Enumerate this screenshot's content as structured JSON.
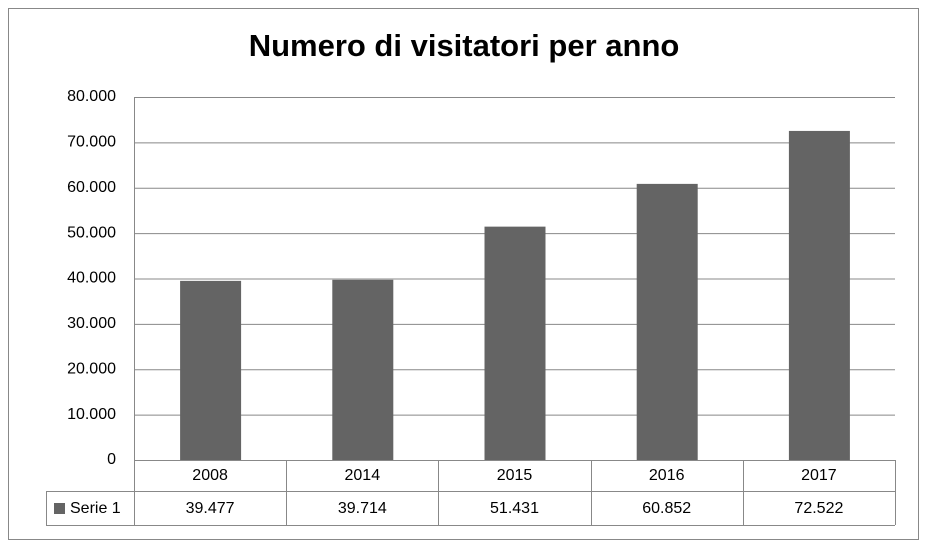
{
  "chart_data": {
    "type": "bar",
    "title": "Numero di visitatori per anno",
    "categories": [
      "2008",
      "2014",
      "2015",
      "2016",
      "2017"
    ],
    "series": [
      {
        "name": "Serie 1",
        "color": "#646464",
        "values": [
          39477,
          39714,
          51431,
          60852,
          72522
        ],
        "value_labels": [
          "39.477",
          "39.714",
          "51.431",
          "60.852",
          "72.522"
        ]
      }
    ],
    "ylim": [
      0,
      80000
    ],
    "yticks": [
      0,
      {
        "value": 10000,
        "label": "10.000"
      },
      {
        "value": 20000,
        "label": "20.000"
      },
      {
        "value": 30000,
        "label": "30.000"
      },
      {
        "value": 40000,
        "label": "40.000"
      },
      {
        "value": 50000,
        "label": "50.000"
      },
      {
        "value": 60000,
        "label": "60.000"
      },
      {
        "value": 70000,
        "label": "70.000"
      },
      {
        "value": 80000,
        "label": "80.000"
      }
    ],
    "grid": true,
    "data_table": true
  }
}
